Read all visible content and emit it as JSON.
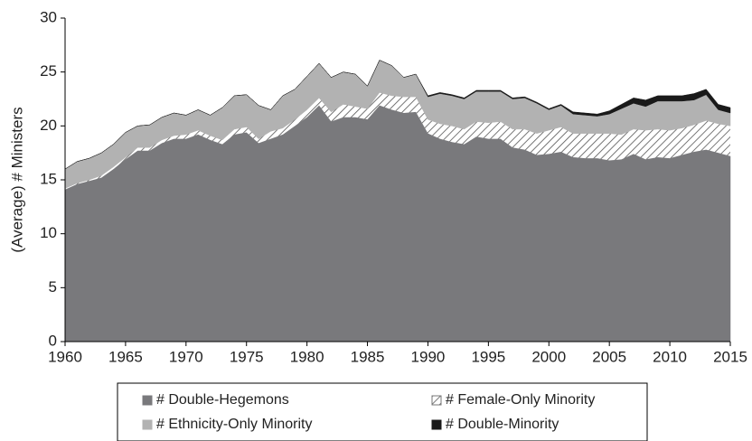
{
  "chart_data": {
    "type": "stacked-area",
    "y_label": "(Average) # Ministers",
    "x": [
      1960,
      1961,
      1962,
      1963,
      1964,
      1965,
      1966,
      1967,
      1968,
      1969,
      1970,
      1971,
      1972,
      1973,
      1974,
      1975,
      1976,
      1977,
      1978,
      1979,
      1980,
      1981,
      1982,
      1983,
      1984,
      1985,
      1986,
      1987,
      1988,
      1989,
      1990,
      1991,
      1992,
      1993,
      1994,
      1995,
      1996,
      1997,
      1998,
      1999,
      2000,
      2001,
      2002,
      2003,
      2004,
      2005,
      2006,
      2007,
      2008,
      2009,
      2010,
      2011,
      2012,
      2013,
      2014,
      2015
    ],
    "series": [
      {
        "name": "# Double-Hegemons",
        "color": "#79797c",
        "values": [
          14.1,
          14.6,
          14.9,
          15.2,
          16.0,
          16.9,
          17.7,
          17.7,
          18.4,
          18.8,
          18.8,
          19.2,
          18.7,
          18.3,
          19.2,
          19.4,
          18.4,
          18.8,
          19.2,
          20.0,
          20.8,
          21.9,
          20.4,
          20.8,
          20.8,
          20.6,
          21.9,
          21.5,
          21.2,
          21.3,
          19.3,
          18.8,
          18.5,
          18.3,
          19.0,
          18.8,
          18.8,
          18.0,
          17.8,
          17.3,
          17.4,
          17.6,
          17.1,
          17.0,
          17.0,
          16.8,
          16.9,
          17.4,
          16.9,
          17.1,
          17.0,
          17.3,
          17.6,
          17.8,
          17.5,
          17.2
        ]
      },
      {
        "name": "# Female-Only Minority",
        "color": "#555555",
        "pattern": "hatch",
        "values": [
          0.1,
          0.1,
          0.1,
          0.2,
          0.2,
          0.2,
          0.3,
          0.3,
          0.3,
          0.3,
          0.4,
          0.4,
          0.4,
          0.4,
          0.5,
          0.5,
          0.4,
          0.7,
          0.6,
          0.6,
          0.7,
          0.7,
          0.9,
          1.2,
          1.0,
          1.0,
          1.2,
          1.3,
          1.5,
          1.4,
          1.3,
          1.4,
          1.5,
          1.4,
          1.4,
          1.5,
          1.6,
          1.7,
          1.9,
          2.0,
          2.2,
          2.3,
          2.2,
          2.3,
          2.3,
          2.5,
          2.3,
          2.3,
          2.7,
          2.6,
          2.6,
          2.5,
          2.5,
          2.7,
          2.7,
          2.8
        ]
      },
      {
        "name": "# Ethnicity-Only Minority",
        "color": "#b2b2b2",
        "values": [
          1.8,
          2.0,
          2.0,
          2.1,
          2.1,
          2.3,
          2.0,
          2.1,
          2.1,
          2.1,
          1.8,
          1.9,
          1.9,
          3.0,
          3.1,
          3.0,
          3.1,
          2.0,
          3.0,
          2.8,
          3.1,
          3.2,
          3.2,
          3.0,
          3.0,
          2.1,
          3.0,
          2.8,
          1.8,
          2.1,
          2.1,
          2.8,
          2.8,
          2.8,
          2.8,
          2.9,
          2.8,
          2.8,
          2.9,
          2.8,
          1.9,
          2.0,
          1.8,
          1.7,
          1.6,
          1.8,
          2.4,
          2.4,
          2.2,
          2.6,
          2.7,
          2.5,
          2.3,
          2.4,
          1.3,
          1.2
        ]
      },
      {
        "name": "# Double-Minority",
        "color": "#1a1a1a",
        "values": [
          0,
          0,
          0,
          0,
          0,
          0,
          0,
          0,
          0,
          0,
          0,
          0,
          0,
          0,
          0,
          0,
          0,
          0,
          0,
          0,
          0,
          0,
          0,
          0,
          0,
          0,
          0,
          0,
          0,
          0,
          0.1,
          0.1,
          0.1,
          0.1,
          0.1,
          0.1,
          0.1,
          0.1,
          0.1,
          0.1,
          0.1,
          0.1,
          0.2,
          0.2,
          0.2,
          0.3,
          0.4,
          0.5,
          0.6,
          0.5,
          0.5,
          0.5,
          0.6,
          0.5,
          0.5,
          0.5
        ]
      }
    ],
    "xlim": [
      1960,
      2015
    ],
    "xticks": [
      1960,
      1965,
      1970,
      1975,
      1980,
      1985,
      1990,
      1995,
      2000,
      2005,
      2010,
      2015
    ],
    "ylim": [
      0,
      30
    ],
    "yticks": [
      0,
      5,
      10,
      15,
      20,
      25,
      30
    ],
    "legend": "bottom"
  }
}
